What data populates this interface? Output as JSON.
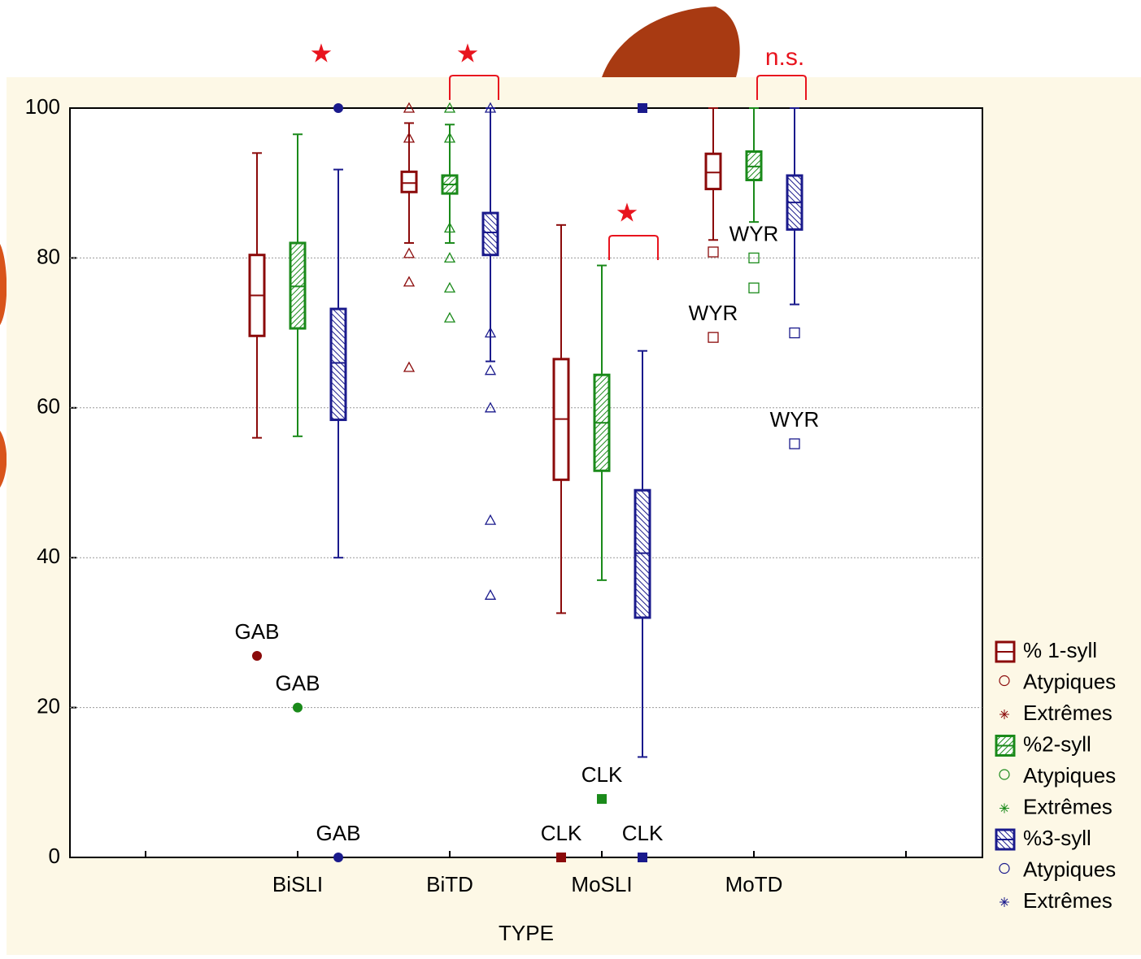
{
  "chart_data": {
    "type": "box",
    "x_label": "TYPE",
    "categories": [
      "BiSLI",
      "BiTD",
      "MoSLI",
      "MoTD"
    ],
    "markers": [
      "dot",
      "triangle",
      "square-filled",
      "square"
    ],
    "ylim": [
      0,
      100
    ],
    "yticks": [
      0,
      20,
      40,
      60,
      80,
      100
    ],
    "grid": true,
    "legend": "right",
    "series": [
      {
        "name": "% 1-syll",
        "outlier_name": "Atypiques",
        "extreme_name": "Extrêmes",
        "color": "#8b0a0a",
        "hatch": false,
        "boxes": [
          {
            "min": 56,
            "q1": 69.6,
            "median": 75,
            "q3": 80.4,
            "max": 94
          },
          {
            "min": 82,
            "q1": 88.8,
            "median": 90,
            "q3": 91.5,
            "max": 98
          },
          {
            "min": 32.6,
            "q1": 50.4,
            "median": 58.5,
            "q3": 66.5,
            "max": 84.4
          },
          {
            "min": 82.4,
            "q1": 89.2,
            "median": 91.4,
            "q3": 93.9,
            "max": 100
          }
        ],
        "outliers": [
          [
            {
              "value": 26.9,
              "label": "GAB"
            }
          ],
          [
            100,
            96,
            80.6,
            76.8,
            65.4
          ],
          [
            {
              "value": 0,
              "label": "CLK"
            }
          ],
          [
            80.8,
            {
              "value": 69.4,
              "label": "WYR"
            }
          ]
        ]
      },
      {
        "name": "%2-syll",
        "outlier_name": "Atypiques",
        "extreme_name": "Extrêmes",
        "color": "#1a8a1a",
        "hatch": true,
        "boxes": [
          {
            "min": 56.2,
            "q1": 70.6,
            "median": 76.2,
            "q3": 82,
            "max": 96.5
          },
          {
            "min": 82,
            "q1": 88.6,
            "median": 89.8,
            "q3": 91,
            "max": 97.8
          },
          {
            "min": 37,
            "q1": 51.6,
            "median": 58,
            "q3": 64.4,
            "max": 79
          },
          {
            "min": 84.8,
            "q1": 90.4,
            "median": 92.2,
            "q3": 94.2,
            "max": 100
          }
        ],
        "outliers": [
          [
            {
              "value": 20,
              "label": "GAB"
            }
          ],
          [
            100,
            96,
            84,
            80,
            76,
            72
          ],
          [
            {
              "value": 7.8,
              "label": "CLK"
            }
          ],
          [
            {
              "value": 80,
              "label": "WYR"
            },
            76
          ]
        ]
      },
      {
        "name": "%3-syll",
        "outlier_name": "Atypiques",
        "extreme_name": "Extrêmes",
        "color": "#1a1a8c",
        "hatch": true,
        "boxes": [
          {
            "min": 40,
            "q1": 58.4,
            "median": 66,
            "q3": 73.2,
            "max": 91.8
          },
          {
            "min": 66.2,
            "q1": 80.4,
            "median": 83.4,
            "q3": 86,
            "max": 100
          },
          {
            "min": 13.4,
            "q1": 32,
            "median": 40.6,
            "q3": 49,
            "max": 67.6
          },
          {
            "min": 73.8,
            "q1": 83.8,
            "median": 87.4,
            "q3": 91,
            "max": 100
          }
        ],
        "outliers": [
          [
            100,
            {
              "value": 0,
              "label": "GAB"
            }
          ],
          [
            100,
            70,
            65,
            60,
            45,
            35
          ],
          [
            100,
            {
              "value": 0,
              "label": "CLK"
            }
          ],
          [
            70,
            {
              "value": 55.2,
              "label": "WYR"
            }
          ]
        ]
      }
    ],
    "annotations": [
      {
        "text": "★"
      },
      {
        "text": "★"
      },
      {
        "text": "★"
      },
      {
        "text": "n.s."
      }
    ]
  }
}
